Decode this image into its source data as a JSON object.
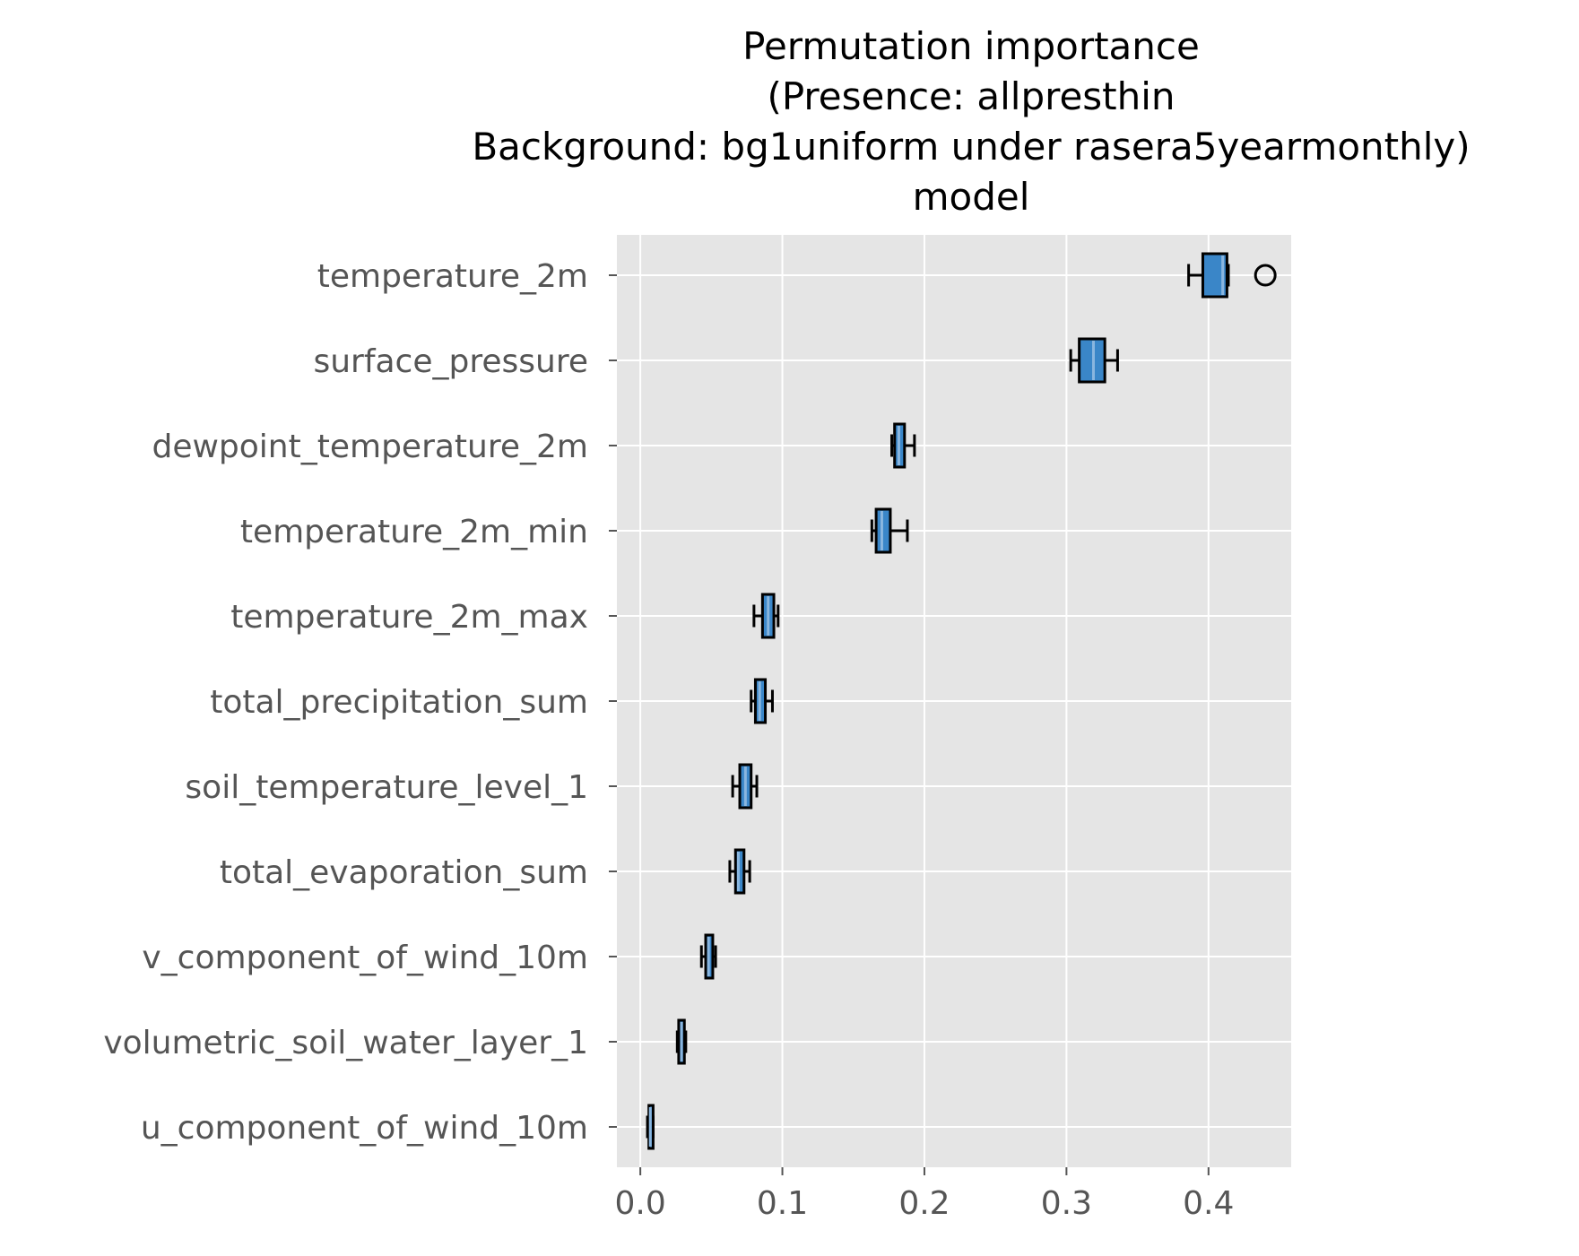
{
  "chart_data": {
    "type": "boxplot",
    "orientation": "horizontal",
    "title_lines": [
      "Permutation importance",
      "(Presence: allpresthin",
      "Background: bg1uniform under rasera5yearmonthly)",
      "model"
    ],
    "xlabel": "",
    "ylabel": "",
    "xlim": [
      -0.0165,
      0.4582
    ],
    "xticks": [
      "0.0",
      "0.1",
      "0.2",
      "0.3",
      "0.4"
    ],
    "grid": true,
    "style": {
      "plot_bg": "#e5e5e5",
      "grid_color": "#ffffff",
      "box_fill": "#3a86c8",
      "median_color": "#8ab6df",
      "box_edge": "#000000"
    },
    "categories": [
      "temperature_2m",
      "surface_pressure",
      "dewpoint_temperature_2m",
      "temperature_2m_min",
      "temperature_2m_max",
      "total_precipitation_sum",
      "soil_temperature_level_1",
      "total_evaporation_sum",
      "v_component_of_wind_10m",
      "volumetric_soil_water_layer_1",
      "u_component_of_wind_10m"
    ],
    "boxes": [
      {
        "whislo": 0.386,
        "q1": 0.396,
        "med": 0.41,
        "q3": 0.413,
        "whishi": 0.414,
        "fliers": [
          0.44
        ]
      },
      {
        "whislo": 0.303,
        "q1": 0.309,
        "med": 0.319,
        "q3": 0.327,
        "whishi": 0.336,
        "fliers": []
      },
      {
        "whislo": 0.177,
        "q1": 0.179,
        "med": 0.182,
        "q3": 0.186,
        "whishi": 0.193,
        "fliers": []
      },
      {
        "whislo": 0.163,
        "q1": 0.166,
        "med": 0.17,
        "q3": 0.176,
        "whishi": 0.188,
        "fliers": []
      },
      {
        "whislo": 0.08,
        "q1": 0.086,
        "med": 0.09,
        "q3": 0.094,
        "whishi": 0.097,
        "fliers": []
      },
      {
        "whislo": 0.078,
        "q1": 0.081,
        "med": 0.084,
        "q3": 0.088,
        "whishi": 0.093,
        "fliers": []
      },
      {
        "whislo": 0.065,
        "q1": 0.07,
        "med": 0.074,
        "q3": 0.078,
        "whishi": 0.082,
        "fliers": []
      },
      {
        "whislo": 0.063,
        "q1": 0.067,
        "med": 0.069,
        "q3": 0.073,
        "whishi": 0.077,
        "fliers": []
      },
      {
        "whislo": 0.043,
        "q1": 0.046,
        "med": 0.048,
        "q3": 0.051,
        "whishi": 0.053,
        "fliers": []
      },
      {
        "whislo": 0.026,
        "q1": 0.027,
        "med": 0.029,
        "q3": 0.031,
        "whishi": 0.032,
        "fliers": []
      },
      {
        "whislo": 0.005,
        "q1": 0.006,
        "med": 0.007,
        "q3": 0.009,
        "whishi": 0.009,
        "fliers": []
      }
    ]
  }
}
